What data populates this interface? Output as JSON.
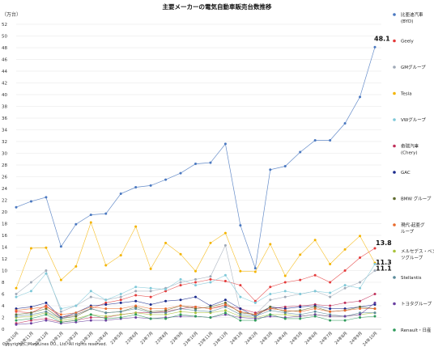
{
  "chart_data": {
    "type": "line",
    "title": "主要メーカーの電気自動車販売台数推移",
    "yunit": "（万台）",
    "ylim": [
      0,
      52
    ],
    "yticks": [
      0,
      2,
      4,
      6,
      8,
      10,
      12,
      14,
      16,
      18,
      20,
      22,
      24,
      26,
      28,
      30,
      32,
      34,
      36,
      38,
      40,
      42,
      44,
      46,
      48,
      50,
      52
    ],
    "grid": "horizontal",
    "legend_position": "right",
    "categories": [
      "22年10月",
      "22年11月",
      "22年12月",
      "23年1月",
      "23年2月",
      "23年3月",
      "23年4月",
      "23年5月",
      "23年6月",
      "23年7月",
      "23年8月",
      "23年9月",
      "23年10月",
      "23年11月",
      "23年12月",
      "24年1月",
      "24年2月",
      "24年3月",
      "24年4月",
      "24年5月",
      "24年6月",
      "24年7月",
      "24年8月",
      "24年9月",
      "24年10月"
    ],
    "series": [
      {
        "name": "比亜迪汽車\n(BYD)",
        "color": "#4a78c0",
        "values": [
          20.8,
          21.8,
          22.5,
          14.1,
          17.9,
          19.5,
          19.7,
          23.1,
          24.2,
          24.5,
          25.5,
          26.6,
          28.2,
          28.4,
          31.6,
          17.7,
          10.4,
          27.2,
          27.8,
          30.2,
          32.2,
          32.2,
          35.1,
          39.6,
          48.1
        ]
      },
      {
        "name": "Geely",
        "color": "#e43a3a",
        "values": [
          3.0,
          2.8,
          4.0,
          2.0,
          2.5,
          3.5,
          4.5,
          5.0,
          5.8,
          5.5,
          6.5,
          7.5,
          8.0,
          8.5,
          8.2,
          7.5,
          4.8,
          7.2,
          8.0,
          8.4,
          9.2,
          8.0,
          10.0,
          12.2,
          13.8
        ]
      },
      {
        "name": "GMグループ",
        "color": "#9fa9b7",
        "values": [
          6.0,
          8.0,
          10.0,
          3.0,
          4.0,
          5.5,
          5.0,
          5.5,
          6.5,
          6.5,
          7.0,
          8.0,
          8.5,
          9.0,
          14.3,
          3.0,
          2.5,
          5.0,
          5.5,
          6.0,
          6.5,
          5.5,
          7.0,
          8.0,
          10.0
        ]
      },
      {
        "name": "Tesla",
        "color": "#f4b400",
        "values": [
          7.0,
          13.8,
          13.9,
          8.4,
          10.7,
          18.2,
          10.9,
          12.6,
          17.5,
          10.3,
          14.7,
          12.8,
          9.9,
          14.7,
          16.4,
          9.9,
          9.8,
          14.5,
          9.1,
          12.7,
          15.2,
          11.1,
          13.6,
          15.9,
          11.3
        ]
      },
      {
        "name": "VWグループ",
        "color": "#7ec8d8",
        "values": [
          5.5,
          6.5,
          9.5,
          3.5,
          4.0,
          6.5,
          5.0,
          6.0,
          7.2,
          7.0,
          6.8,
          8.5,
          7.5,
          8.0,
          9.2,
          5.5,
          4.5,
          6.0,
          6.5,
          6.0,
          6.5,
          6.2,
          7.5,
          7.0,
          11.1
        ]
      },
      {
        "name": "奇瑞汽車\n(Chery)",
        "color": "#c0305a",
        "values": [
          1.0,
          1.5,
          1.8,
          1.2,
          1.5,
          2.0,
          2.0,
          2.5,
          2.8,
          2.8,
          3.0,
          3.5,
          3.8,
          3.5,
          4.0,
          3.5,
          2.8,
          3.5,
          3.8,
          4.0,
          4.2,
          4.0,
          4.5,
          4.8,
          6.0
        ]
      },
      {
        "name": "GAC",
        "color": "#1a2a8c",
        "values": [
          3.5,
          3.8,
          4.5,
          2.0,
          2.8,
          4.0,
          4.2,
          4.5,
          4.8,
          4.2,
          4.8,
          5.0,
          5.5,
          4.0,
          5.0,
          3.5,
          2.2,
          3.8,
          3.5,
          3.8,
          4.0,
          3.5,
          3.5,
          3.8,
          4.2
        ]
      },
      {
        "name": "BMW グループ",
        "color": "#5f6b2e",
        "values": [
          2.5,
          2.8,
          3.5,
          1.8,
          2.2,
          3.5,
          2.8,
          3.0,
          3.8,
          3.0,
          3.2,
          4.0,
          3.5,
          3.8,
          4.5,
          2.8,
          2.5,
          3.8,
          3.0,
          3.2,
          3.8,
          3.0,
          3.2,
          3.8,
          3.5
        ]
      },
      {
        "name": "現代-起亜グ\nループ",
        "color": "#e86a2c",
        "values": [
          3.2,
          3.5,
          3.8,
          2.5,
          2.8,
          3.8,
          3.5,
          3.5,
          4.0,
          3.5,
          3.5,
          4.0,
          3.8,
          3.5,
          4.2,
          3.0,
          2.5,
          3.5,
          3.2,
          3.0,
          3.5,
          3.0,
          3.2,
          3.5,
          3.5
        ]
      },
      {
        "name": "メルセデス・ベン\nツグループ",
        "color": "#a8c23a",
        "values": [
          2.0,
          2.2,
          2.8,
          1.5,
          1.8,
          2.5,
          2.2,
          2.5,
          2.8,
          2.5,
          2.5,
          3.0,
          2.8,
          2.8,
          3.2,
          2.2,
          2.0,
          2.5,
          2.5,
          2.2,
          2.5,
          2.2,
          2.2,
          2.5,
          2.8
        ]
      },
      {
        "name": "Stellantis",
        "color": "#5a8a9a",
        "values": [
          2.2,
          2.5,
          3.0,
          1.8,
          2.5,
          3.5,
          2.8,
          3.0,
          3.5,
          2.8,
          2.8,
          3.5,
          3.2,
          3.0,
          3.8,
          2.5,
          2.2,
          3.2,
          2.8,
          2.5,
          3.0,
          2.5,
          2.2,
          2.8,
          2.8
        ]
      },
      {
        "name": "トヨタグループ",
        "color": "#6a3fa0",
        "values": [
          0.8,
          1.0,
          1.5,
          1.0,
          1.2,
          1.5,
          1.5,
          1.8,
          2.0,
          1.8,
          2.0,
          2.2,
          2.2,
          2.0,
          2.5,
          2.0,
          1.8,
          2.2,
          2.0,
          2.2,
          2.5,
          2.2,
          2.2,
          2.5,
          4.5
        ]
      },
      {
        "name": "Renault・日産",
        "color": "#2e9a5a",
        "values": [
          1.5,
          1.8,
          2.5,
          1.2,
          1.5,
          2.5,
          1.8,
          2.0,
          2.5,
          1.8,
          1.8,
          2.5,
          2.2,
          2.0,
          2.8,
          1.5,
          1.5,
          2.5,
          1.8,
          1.8,
          2.2,
          1.5,
          1.5,
          2.0,
          2.2
        ]
      }
    ],
    "callouts": [
      {
        "text": "48.1",
        "series": 0
      },
      {
        "text": "13.8",
        "series": 1
      },
      {
        "text": "11.3",
        "series": 3
      },
      {
        "text": "11.1",
        "series": 4
      }
    ]
  },
  "copyright": "Copyright(C)MarkLines CO., Ltd. All rights reserved."
}
